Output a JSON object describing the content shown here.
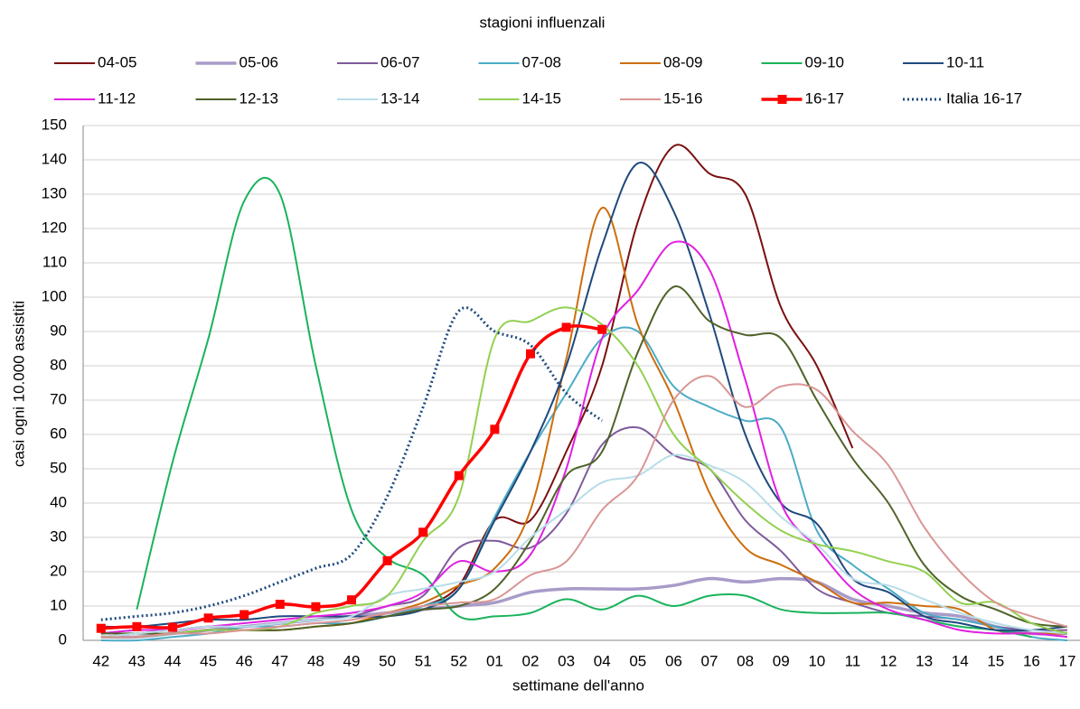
{
  "chart_data": {
    "type": "line",
    "title": "stagioni influenzali",
    "x_label": "settimane dell'anno",
    "y_label": "casi ogni 10.000 assistiti",
    "categories": [
      "42",
      "43",
      "44",
      "45",
      "46",
      "47",
      "48",
      "49",
      "50",
      "51",
      "52",
      "01",
      "02",
      "03",
      "04",
      "05",
      "06",
      "07",
      "08",
      "09",
      "10",
      "11",
      "12",
      "13",
      "14",
      "15",
      "16",
      "17"
    ],
    "ylim": [
      0,
      150
    ],
    "yticks": [
      0,
      10,
      20,
      30,
      40,
      50,
      60,
      70,
      80,
      90,
      100,
      110,
      120,
      130,
      140,
      150
    ],
    "grid": true,
    "legend": "top",
    "series": [
      {
        "name": "04-05",
        "color": "#7b1010",
        "values": [
          1,
          2,
          3,
          4,
          4,
          5,
          6,
          7,
          8,
          10,
          16,
          35,
          35,
          55,
          80,
          122,
          144,
          136,
          130,
          97,
          80,
          56,
          null,
          null,
          null,
          null,
          null,
          null
        ]
      },
      {
        "name": "05-06",
        "color": "#a89bc9",
        "style": "thick",
        "values": [
          1,
          1,
          2,
          3,
          4,
          5,
          6,
          7,
          8,
          9,
          10,
          11,
          14,
          15,
          15,
          15,
          16,
          18,
          17,
          18,
          17,
          12,
          10,
          8,
          7,
          4,
          2,
          2
        ]
      },
      {
        "name": "06-07",
        "color": "#7e5a9b",
        "values": [
          2,
          3,
          3,
          4,
          4,
          5,
          6,
          7,
          10,
          13,
          27,
          29,
          27,
          37,
          57,
          62,
          54,
          50,
          35,
          26,
          15,
          11,
          8,
          7,
          6,
          4,
          3,
          3
        ]
      },
      {
        "name": "07-08",
        "color": "#4bacc6",
        "values": [
          0,
          0,
          1,
          2,
          4,
          4,
          5,
          5,
          7,
          10,
          15,
          36,
          55,
          72,
          88,
          90,
          74,
          68,
          64,
          62,
          32,
          22,
          15,
          8,
          6,
          4,
          1,
          0
        ]
      },
      {
        "name": "08-09",
        "color": "#cc6e0e",
        "values": [
          1,
          1,
          2,
          3,
          3,
          3,
          4,
          5,
          8,
          11,
          16,
          21,
          38,
          82,
          126,
          92,
          70,
          43,
          27,
          22,
          17,
          11,
          11,
          10,
          9,
          3,
          2,
          2
        ]
      },
      {
        "name": "09-10",
        "color": "#19b35c",
        "values": [
          null,
          9,
          52,
          88,
          128,
          130,
          80,
          38,
          24,
          19,
          7,
          7,
          8,
          12,
          9,
          13,
          10,
          13,
          13,
          9,
          8,
          8,
          8,
          6,
          4,
          3,
          1,
          null
        ]
      },
      {
        "name": "10-11",
        "color": "#1f497d",
        "values": [
          4,
          4,
          5,
          6,
          6,
          7,
          7,
          7,
          7,
          9,
          15,
          35,
          55,
          80,
          115,
          139,
          125,
          95,
          60,
          40,
          34,
          18,
          14,
          7,
          5,
          3,
          3,
          4
        ]
      },
      {
        "name": "11-12",
        "color": "#e020e0",
        "values": [
          2,
          3,
          3,
          4,
          5,
          6,
          7,
          8,
          10,
          14,
          23,
          20,
          25,
          50,
          88,
          102,
          116,
          108,
          76,
          40,
          27,
          15,
          9,
          6,
          3,
          2,
          2,
          1
        ]
      },
      {
        "name": "12-13",
        "color": "#4f6228",
        "values": [
          2,
          2,
          2,
          3,
          3,
          3,
          4,
          5,
          7,
          9,
          10,
          15,
          29,
          48,
          55,
          84,
          103,
          93,
          89,
          88,
          70,
          53,
          40,
          22,
          13,
          9,
          5,
          4
        ]
      },
      {
        "name": "13-14",
        "color": "#b7dde8",
        "values": [
          1,
          2,
          3,
          4,
          4,
          5,
          6,
          7,
          13,
          15,
          17,
          20,
          30,
          38,
          46,
          48,
          54,
          51,
          46,
          36,
          28,
          18,
          16,
          12,
          8,
          5,
          3,
          2
        ]
      },
      {
        "name": "14-15",
        "color": "#92d050",
        "values": [
          1,
          1,
          2,
          3,
          3,
          4,
          8,
          10,
          13,
          29,
          42,
          88,
          93,
          97,
          92,
          80,
          60,
          50,
          40,
          32,
          28,
          26,
          23,
          20,
          11,
          11,
          5,
          2
        ]
      },
      {
        "name": "15-16",
        "color": "#d99594",
        "values": [
          1,
          1,
          2,
          2,
          3,
          4,
          5,
          6,
          8,
          10,
          11,
          12,
          19,
          23,
          38,
          48,
          70,
          77,
          68,
          74,
          73,
          61,
          51,
          33,
          20,
          11,
          7,
          4
        ]
      },
      {
        "name": "16-17",
        "color": "#ff0000",
        "style": "thick",
        "marker": "square",
        "values": [
          3.5,
          4,
          3.8,
          6.5,
          7.5,
          10.5,
          9.8,
          11.8,
          23.2,
          31.5,
          48,
          61.5,
          83.5,
          91.2,
          90.6,
          null,
          null,
          null,
          null,
          null,
          null,
          null,
          null,
          null,
          null,
          null,
          null,
          null
        ]
      },
      {
        "name": "Italia 16-17",
        "color": "#1f497d",
        "style": "dotted",
        "values": [
          6,
          7,
          8,
          10,
          13,
          17,
          21,
          25,
          42,
          68,
          96,
          90,
          86,
          72,
          64,
          null,
          null,
          null,
          null,
          null,
          null,
          null,
          null,
          null,
          null,
          null,
          null,
          null
        ]
      }
    ]
  }
}
